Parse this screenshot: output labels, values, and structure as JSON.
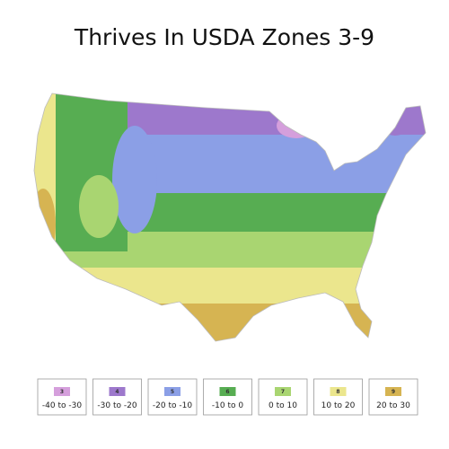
{
  "title": "Thrives In USDA Zones 3-9",
  "legend": [
    {
      "zone": "3",
      "range": "-40 to -30",
      "color": "#d59fdc"
    },
    {
      "zone": "4",
      "range": "-30 to -20",
      "color": "#9d78cc"
    },
    {
      "zone": "5",
      "range": "-20 to -10",
      "color": "#8b9fe6"
    },
    {
      "zone": "6",
      "range": "-10 to 0",
      "color": "#57ad52"
    },
    {
      "zone": "7",
      "range": "0 to 10",
      "color": "#a9d571"
    },
    {
      "zone": "8",
      "range": "10 to 20",
      "color": "#ebe68d"
    },
    {
      "zone": "9",
      "range": "20 to 30",
      "color": "#d6b452"
    }
  ]
}
